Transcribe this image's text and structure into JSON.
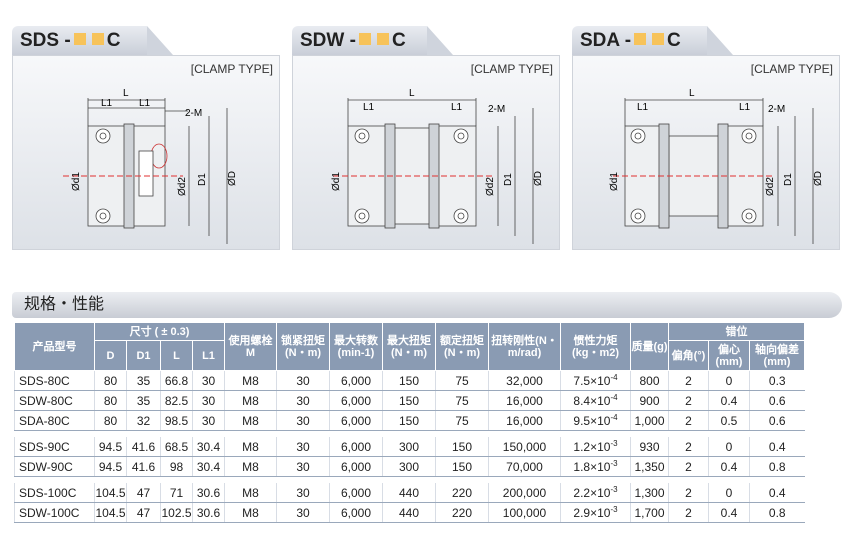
{
  "panels": [
    {
      "prefix": "SDS -",
      "suffix": "C",
      "clamp": "[CLAMP TYPE]",
      "dims": {
        "L": "L",
        "L1a": "L1",
        "L1b": "L1",
        "M": "2-M",
        "d1": "Ød1",
        "d2": "Ød2",
        "D1": "D1",
        "D": "ØD"
      }
    },
    {
      "prefix": "SDW -",
      "suffix": "C",
      "clamp": "[CLAMP TYPE]",
      "dims": {
        "L": "L",
        "L1a": "L1",
        "L1b": "L1",
        "M": "2-M",
        "d1": "Ød1",
        "d2": "Ød2",
        "D1": "D1",
        "D": "ØD"
      }
    },
    {
      "prefix": "SDA -",
      "suffix": "C",
      "clamp": "[CLAMP TYPE]",
      "dims": {
        "L": "L",
        "L1a": "L1",
        "L1b": "L1",
        "M": "2-M",
        "d1": "Ød1",
        "d2": "Ød2",
        "D1": "D1",
        "D": "ØD"
      }
    }
  ],
  "section_title": "规格・性能",
  "table": {
    "h_model": "产品型号",
    "h_size": "尺寸 ( ± 0.3)",
    "h_D": "D",
    "h_D1": "D1",
    "h_L": "L",
    "h_L1": "L1",
    "h_bolt": "使用螺栓M",
    "h_torque_lock": "锁紧扭矩(N・m)",
    "h_speed": "最大转数(min-1)",
    "h_max_torque": "最大扭矩(N・m)",
    "h_rated": "额定扭矩(N・m)",
    "h_rigidity": "扭转刚性(N・m/rad)",
    "h_inertia": "惯性力矩(kg・m2)",
    "h_mass": "质量(g)",
    "h_mis": "错位",
    "h_angle": "偏角(°)",
    "h_center": "偏心(mm)",
    "h_axial": "轴向偏差(mm)",
    "groups": [
      [
        [
          "SDS-80C",
          "80",
          "35",
          "66.8",
          "30",
          "M8",
          "30",
          "6,000",
          "150",
          "75",
          "32,000",
          "7.5×10",
          "-4",
          "800",
          "2",
          "0",
          "0.3"
        ],
        [
          "SDW-80C",
          "80",
          "35",
          "82.5",
          "30",
          "M8",
          "30",
          "6,000",
          "150",
          "75",
          "16,000",
          "8.4×10",
          "-4",
          "900",
          "2",
          "0.4",
          "0.6"
        ],
        [
          "SDA-80C",
          "80",
          "32",
          "98.5",
          "30",
          "M8",
          "30",
          "6,000",
          "150",
          "75",
          "16,000",
          "9.5×10",
          "-4",
          "1,000",
          "2",
          "0.5",
          "0.6"
        ]
      ],
      [
        [
          "SDS-90C",
          "94.5",
          "41.6",
          "68.5",
          "30.4",
          "M8",
          "30",
          "6,000",
          "300",
          "150",
          "150,000",
          "1.2×10",
          "-3",
          "930",
          "2",
          "0",
          "0.4"
        ],
        [
          "SDW-90C",
          "94.5",
          "41.6",
          "98",
          "30.4",
          "M8",
          "30",
          "6,000",
          "300",
          "150",
          "70,000",
          "1.8×10",
          "-3",
          "1,350",
          "2",
          "0.4",
          "0.8"
        ]
      ],
      [
        [
          "SDS-100C",
          "104.5",
          "47",
          "71",
          "30.6",
          "M8",
          "30",
          "6,000",
          "440",
          "220",
          "200,000",
          "2.2×10",
          "-3",
          "1,300",
          "2",
          "0",
          "0.4"
        ],
        [
          "SDW-100C",
          "104.5",
          "47",
          "102.5",
          "30.6",
          "M8",
          "30",
          "6,000",
          "440",
          "220",
          "100,000",
          "2.9×10",
          "-3",
          "1,700",
          "2",
          "0.4",
          "0.8"
        ]
      ]
    ]
  },
  "colors": {
    "accent_square": "#f7c35a",
    "header_bg": "#8a9bb3",
    "centerline": "#e03030"
  }
}
